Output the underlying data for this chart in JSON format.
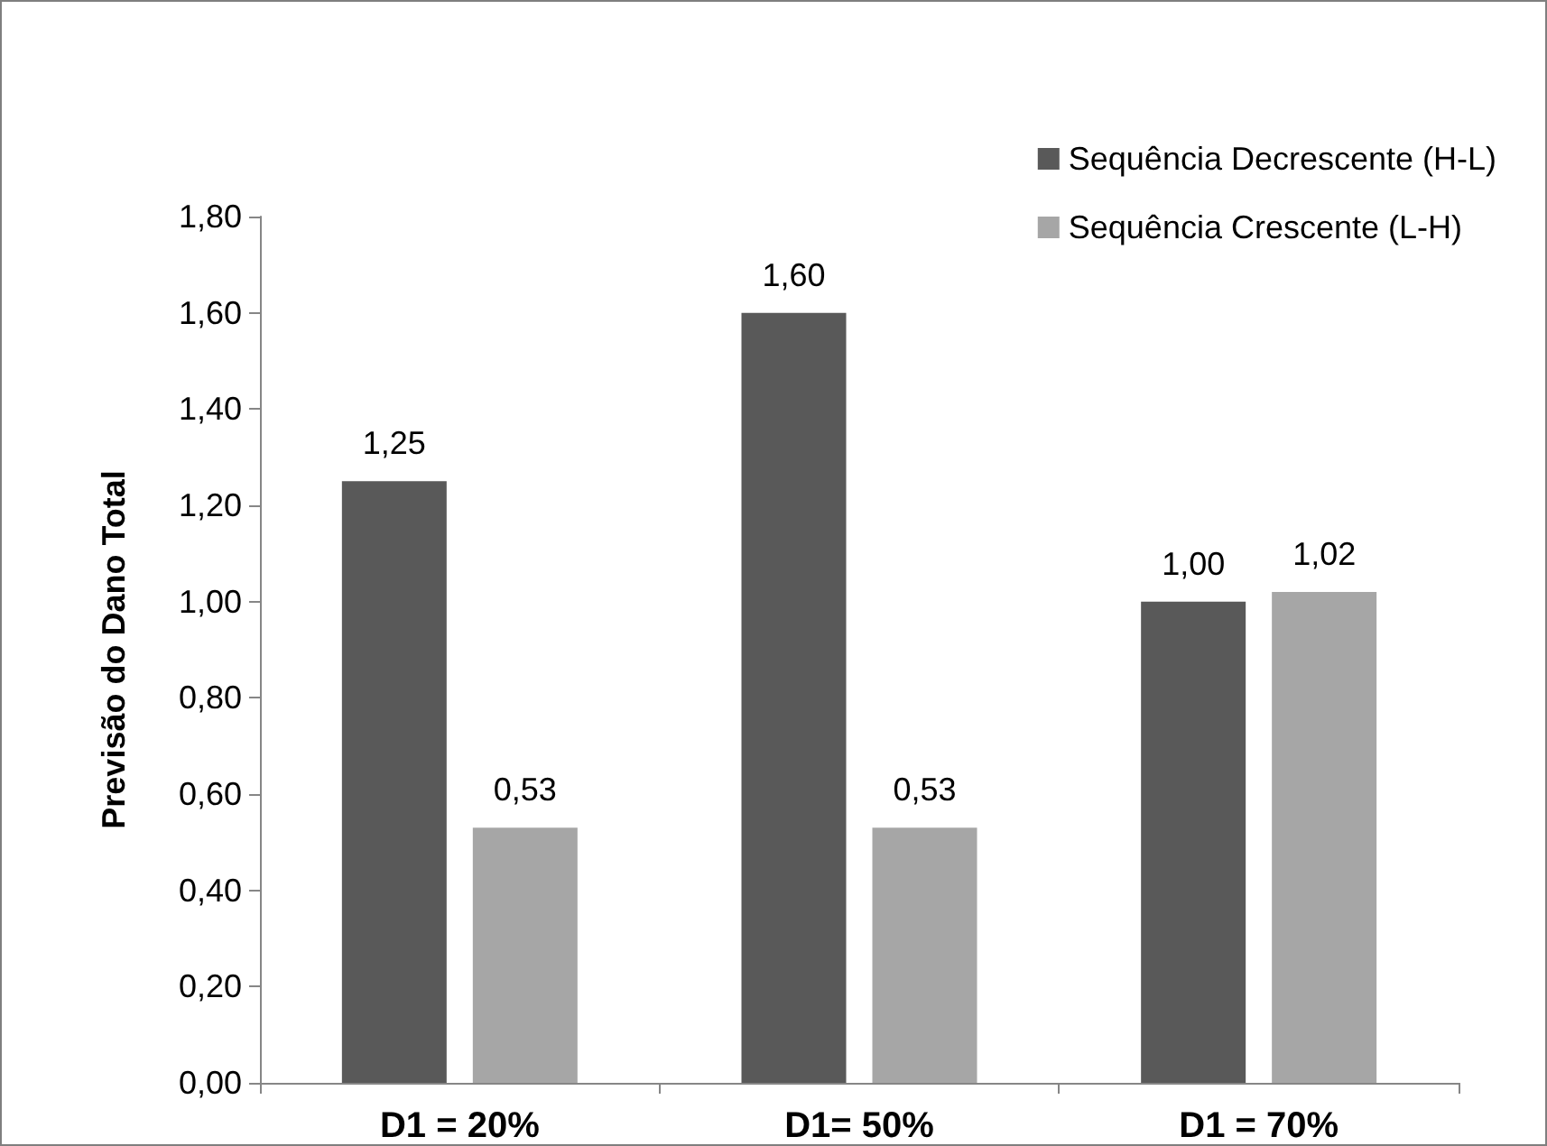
{
  "chart_data": {
    "type": "bar",
    "ylabel": "Previsão do Dano Total",
    "categories": [
      "D1 = 20%",
      "D1= 50%",
      "D1 = 70%"
    ],
    "series": [
      {
        "name": "Sequência Decrescente (H-L)",
        "color": "#595959",
        "values": [
          1.25,
          1.6,
          1.0
        ],
        "value_labels": [
          "1,25",
          "1,60",
          "1,00"
        ]
      },
      {
        "name": "Sequência Crescente (L-H)",
        "color": "#a6a6a6",
        "values": [
          0.53,
          0.53,
          1.02
        ],
        "value_labels": [
          "0,53",
          "0,53",
          "1,02"
        ]
      }
    ],
    "ylim": [
      0,
      1.8
    ],
    "yticks": [
      {
        "value": 0,
        "label": "0,00"
      },
      {
        "value": 0.2,
        "label": "0,20"
      },
      {
        "value": 0.4,
        "label": "0,40"
      },
      {
        "value": 0.6,
        "label": "0,60"
      },
      {
        "value": 0.8,
        "label": "0,80"
      },
      {
        "value": 1,
        "label": "1,00"
      },
      {
        "value": 1.2,
        "label": "1,20"
      },
      {
        "value": 1.4,
        "label": "1,40"
      },
      {
        "value": 1.6,
        "label": "1,60"
      },
      {
        "value": 1.8,
        "label": "1,80"
      }
    ],
    "grid": false,
    "legend": "top right"
  }
}
